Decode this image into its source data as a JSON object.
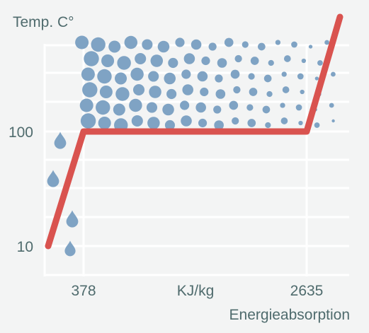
{
  "chart_data": {
    "type": "line",
    "title": "Temp. C°",
    "xlabel": "Energieabsorption",
    "x_center_label": "KJ/kg",
    "x_ticks": [
      378,
      2635
    ],
    "y_ticks": [
      10,
      100
    ],
    "y_scale": "log",
    "grid": true,
    "series": [
      {
        "x": [
          0,
          378,
          2635,
          3000
        ],
        "y": [
          10,
          100,
          100,
          1000
        ]
      }
    ],
    "colors": {
      "line": "#d9534f",
      "grid": "#ffffff",
      "frame": "#ffffff",
      "water": "#7fa3c4",
      "steam": "#7fa3c4",
      "text": "#4f6b6d",
      "background": "#f3f4f4"
    },
    "icons": [
      "water-drop-icon",
      "steam-bubble-icon"
    ]
  }
}
